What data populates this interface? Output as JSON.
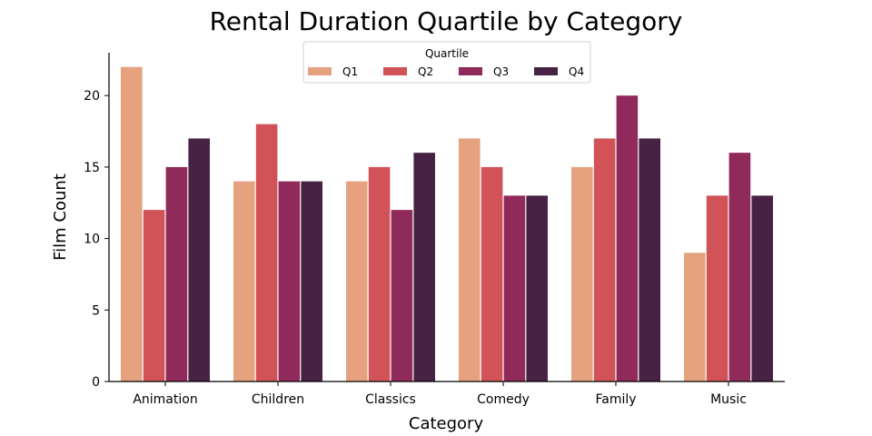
{
  "chart_data": {
    "type": "bar",
    "title": "Rental Duration Quartile by Category",
    "xlabel": "Category",
    "ylabel": "Film Count",
    "categories": [
      "Animation",
      "Children",
      "Classics",
      "Comedy",
      "Family",
      "Music"
    ],
    "series": [
      {
        "name": "Q1",
        "color": "#e6a27f",
        "values": [
          22,
          14,
          14,
          17,
          15,
          9
        ]
      },
      {
        "name": "Q2",
        "color": "#d15257",
        "values": [
          12,
          18,
          15,
          15,
          17,
          13
        ]
      },
      {
        "name": "Q3",
        "color": "#8f2a5a",
        "values": [
          15,
          14,
          12,
          13,
          20,
          16
        ]
      },
      {
        "name": "Q4",
        "color": "#482244",
        "values": [
          17,
          14,
          16,
          13,
          17,
          13
        ]
      }
    ],
    "ylim": [
      0,
      23
    ],
    "yticks": [
      0,
      5,
      10,
      15,
      20
    ],
    "legend": {
      "title": "Quartile",
      "placement": "top-center",
      "columns": 4
    },
    "grid": false
  }
}
